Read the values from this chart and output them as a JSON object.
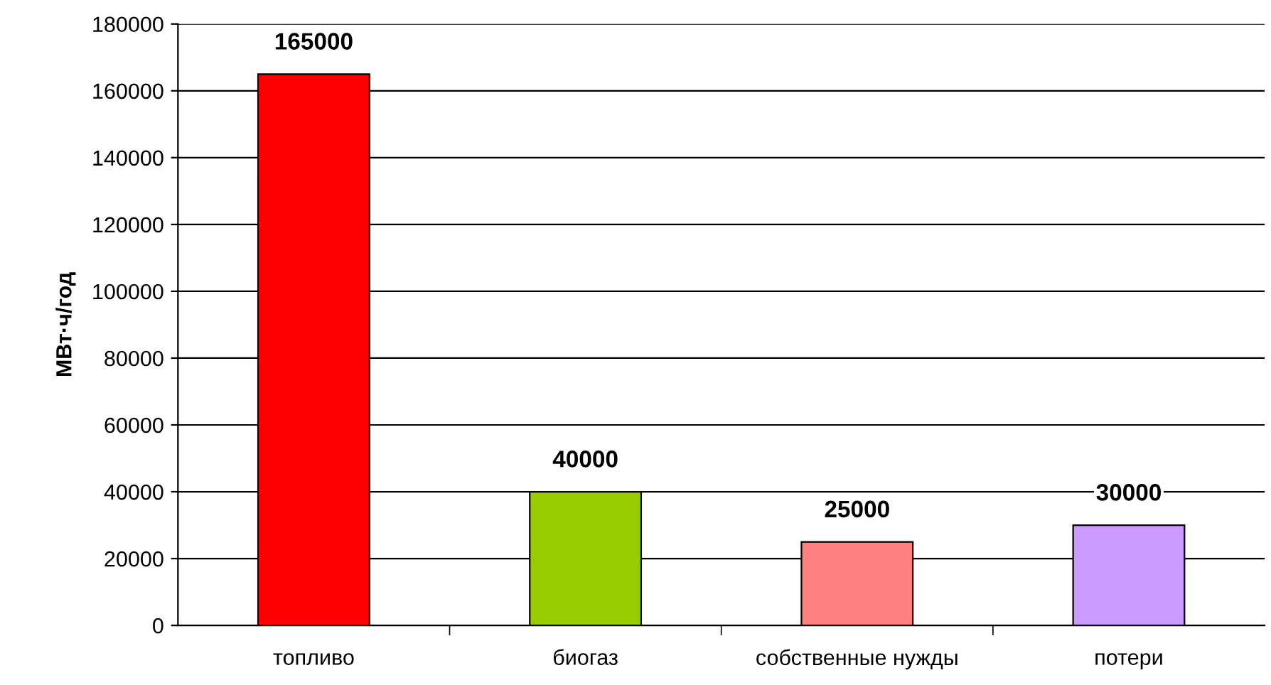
{
  "chart_data": {
    "type": "bar",
    "ylabel": "МВт·ч/год",
    "categories": [
      "топливо",
      "биогаз",
      "собственные нужды",
      "потери"
    ],
    "values": [
      165000,
      40000,
      25000,
      30000
    ],
    "colors": [
      "#ff0000",
      "#99cc00",
      "#ff8080",
      "#cc99ff"
    ],
    "ylim": [
      0,
      180000
    ],
    "yticks": [
      0,
      20000,
      40000,
      60000,
      80000,
      100000,
      120000,
      140000,
      160000,
      180000
    ],
    "grid": "y",
    "legend": false,
    "data_labels": true
  }
}
